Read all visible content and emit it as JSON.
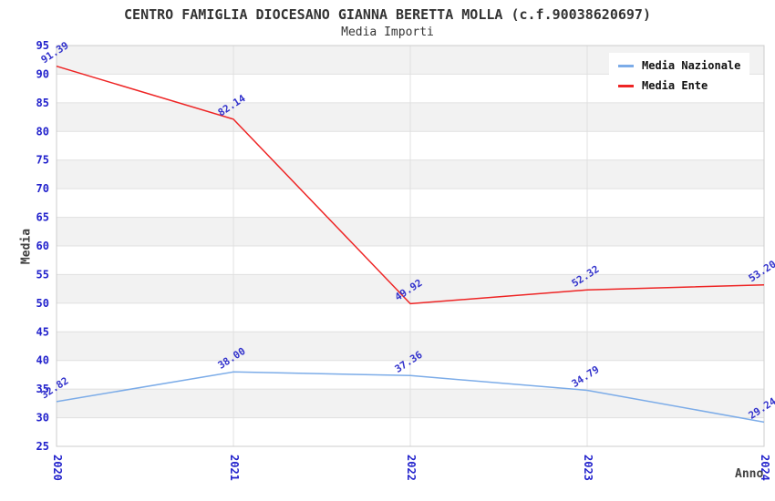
{
  "chart_data": {
    "type": "line",
    "title": "CENTRO FAMIGLIA DIOCESANO GIANNA BERETTA MOLLA (c.f.90038620697)",
    "subtitle": "Media Importi",
    "xlabel": "Anno",
    "ylabel": "Media",
    "x": [
      "2020",
      "2021",
      "2022",
      "2023",
      "2024"
    ],
    "ylim": [
      25,
      95
    ],
    "ytick_step": 5,
    "grid": "horizontal alternating bands with tick gridlines",
    "legend_position": "top-right",
    "series": [
      {
        "name": "Media Nazionale",
        "color": "#7CACE8",
        "values": [
          32.82,
          38.0,
          37.36,
          34.79,
          29.24
        ]
      },
      {
        "name": "Media Ente",
        "color": "#EE2424",
        "values": [
          91.39,
          82.14,
          49.92,
          52.32,
          53.2
        ]
      }
    ],
    "colors": {
      "tick_label": "#2222CC",
      "data_label": "#3333CC",
      "band": "#F2F2F2",
      "gridline": "#E0E0E0",
      "border": "#CCCCCC",
      "title": "#333333",
      "axis_label": "#404040",
      "background": "#FFFFFF"
    }
  }
}
